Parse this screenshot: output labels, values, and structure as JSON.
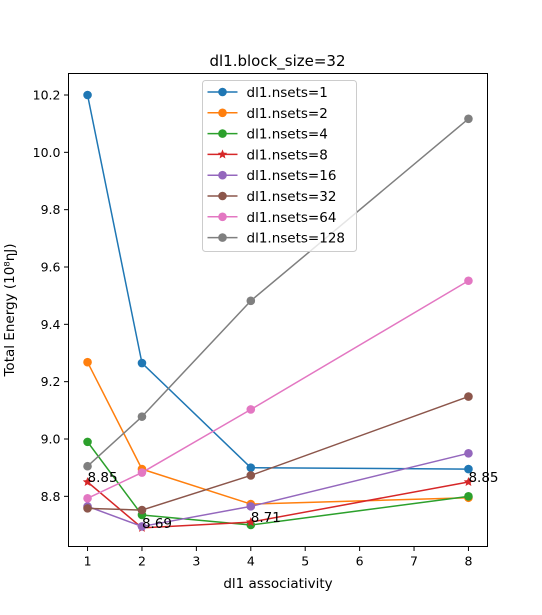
{
  "chart_data": {
    "type": "line",
    "title": "dl1.block_size=32",
    "xlabel": "dl1 associativity",
    "ylabel": "Total Energy (10⁸ηJ)",
    "x": [
      1,
      2,
      4,
      8
    ],
    "xlim": [
      0.65,
      8.35
    ],
    "ylim": [
      8.625,
      10.275
    ],
    "xticks": [
      1,
      2,
      3,
      4,
      5,
      6,
      7,
      8
    ],
    "yticks": [
      8.8,
      9.0,
      9.2,
      9.4,
      9.6,
      9.8,
      10.0,
      10.2
    ],
    "ytick_labels": [
      "8.8",
      "9.0",
      "9.2",
      "9.4",
      "9.6",
      "9.8",
      "10.0",
      "10.2"
    ],
    "grid": false,
    "legend_position": "top-center",
    "series": [
      {
        "name": "dl1.nsets=1",
        "color": "#1f77b4",
        "marker": "circle",
        "values": [
          10.2,
          9.265,
          8.9,
          8.895
        ]
      },
      {
        "name": "dl1.nsets=2",
        "color": "#ff7f0e",
        "marker": "circle",
        "values": [
          9.268,
          8.895,
          8.773,
          8.795
        ]
      },
      {
        "name": "dl1.nsets=4",
        "color": "#2ca02c",
        "marker": "circle",
        "values": [
          8.99,
          8.735,
          8.7,
          8.8
        ]
      },
      {
        "name": "dl1.nsets=8",
        "color": "#d62728",
        "marker": "star",
        "values": [
          8.85,
          8.69,
          8.71,
          8.85
        ]
      },
      {
        "name": "dl1.nsets=16",
        "color": "#9467bd",
        "marker": "circle",
        "values": [
          8.765,
          8.695,
          8.765,
          8.95
        ]
      },
      {
        "name": "dl1.nsets=32",
        "color": "#8c564b",
        "marker": "circle",
        "values": [
          8.758,
          8.752,
          8.873,
          9.148
        ]
      },
      {
        "name": "dl1.nsets=64",
        "color": "#e377c2",
        "marker": "circle",
        "values": [
          8.793,
          8.883,
          9.103,
          9.552
        ]
      },
      {
        "name": "dl1.nsets=128",
        "color": "#7f7f7f",
        "marker": "circle",
        "values": [
          8.905,
          9.078,
          9.482,
          10.117
        ]
      }
    ],
    "annotations": [
      {
        "text": "8.85",
        "x": 1,
        "y": 8.85
      },
      {
        "text": "8.69",
        "x": 2,
        "y": 8.69
      },
      {
        "text": "8.71",
        "x": 4,
        "y": 8.71
      },
      {
        "text": "8.85",
        "x": 8,
        "y": 8.85
      }
    ]
  }
}
